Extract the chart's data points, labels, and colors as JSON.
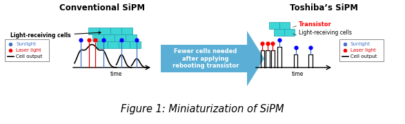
{
  "title": "Figure 1: Miniaturization of SiPM",
  "title_fontsize": 10.5,
  "bg_color": "#ffffff",
  "left_title": "Conventional SiPM",
  "right_title": "Toshiba’s SiPM",
  "arrow_text": "Fewer cells needed\nafter applying\nrebooting transistor",
  "arrow_color": "#5bafd6",
  "left_label": "Light-receiving cells",
  "right_label_transistor": "Transistor",
  "right_label_cells": "Light-receiving cells",
  "legend_items": [
    "Sunlight",
    "Laser light",
    "Cell output"
  ],
  "legend_colors_dot": [
    "#4472c4",
    "#ff0000",
    "#000000"
  ],
  "cell_color": "#3dd6d6",
  "cell_edge": "#2299aa"
}
